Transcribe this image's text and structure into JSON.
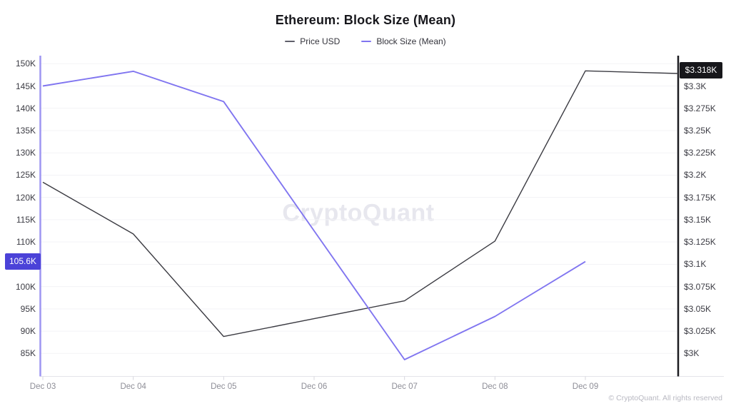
{
  "header": {
    "title": "Ethereum: Block Size (Mean)"
  },
  "legend": {
    "items": [
      {
        "label": "Price USD",
        "color": "#5f5f6a"
      },
      {
        "label": "Block Size (Mean)",
        "color": "#8075f0"
      }
    ]
  },
  "watermark": {
    "text": "CryptoQuant"
  },
  "footer": {
    "copyright": "© CryptoQuant. All rights reserved"
  },
  "axes": {
    "left": {
      "unit": "K",
      "ticks": [
        {
          "label": "150K",
          "v": 150
        },
        {
          "label": "145K",
          "v": 145
        },
        {
          "label": "140K",
          "v": 140
        },
        {
          "label": "135K",
          "v": 135
        },
        {
          "label": "130K",
          "v": 130
        },
        {
          "label": "125K",
          "v": 125
        },
        {
          "label": "120K",
          "v": 120
        },
        {
          "label": "115K",
          "v": 115
        },
        {
          "label": "110K",
          "v": 110
        },
        {
          "label": "100K",
          "v": 100
        },
        {
          "label": "95K",
          "v": 95
        },
        {
          "label": "90K",
          "v": 90
        },
        {
          "label": "85K",
          "v": 85
        }
      ],
      "current_badge": "105.6K",
      "badge_color": "#4b42d8",
      "axis_color": "#9e96f2"
    },
    "right": {
      "unit": "USD",
      "ticks": [
        {
          "label": "$3.3K",
          "v": 3300
        },
        {
          "label": "$3.275K",
          "v": 3275
        },
        {
          "label": "$3.25K",
          "v": 3250
        },
        {
          "label": "$3.225K",
          "v": 3225
        },
        {
          "label": "$3.2K",
          "v": 3200
        },
        {
          "label": "$3.175K",
          "v": 3175
        },
        {
          "label": "$3.15K",
          "v": 3150
        },
        {
          "label": "$3.125K",
          "v": 3125
        },
        {
          "label": "$3.1K",
          "v": 3100
        },
        {
          "label": "$3.075K",
          "v": 3075
        },
        {
          "label": "$3.05K",
          "v": 3050
        },
        {
          "label": "$3.025K",
          "v": 3025
        },
        {
          "label": "$3K",
          "v": 3000
        }
      ],
      "current_badge": "$3.318K",
      "badge_color": "#17171b",
      "axis_color": "#1b1b20"
    },
    "x": {
      "ticks": [
        "Dec 03",
        "Dec 04",
        "Dec 05",
        "Dec 06",
        "Dec 07",
        "Dec 08",
        "Dec 09"
      ]
    }
  },
  "chart_data": {
    "type": "line",
    "title": "Ethereum: Block Size (Mean)",
    "x": [
      "Dec 03",
      "Dec 04",
      "Dec 05",
      "Dec 06",
      "Dec 07",
      "Dec 08",
      "Dec 09"
    ],
    "series": [
      {
        "name": "Price USD",
        "axis": "right",
        "color": "#3b3b42",
        "values": [
          3192,
          3134,
          3019,
          3039,
          3059,
          3126,
          3317
        ],
        "edge_value": 3314,
        "current_label": "$3.318K"
      },
      {
        "name": "Block Size (Mean)",
        "axis": "left",
        "color": "#8075f0",
        "values": [
          145.0,
          148.3,
          141.5,
          112.5,
          83.6,
          93.3,
          105.6
        ],
        "current_label": "105.6K"
      }
    ],
    "left_axis": {
      "label": "Block Size (Mean)",
      "min": 85,
      "max": 150,
      "tick_step": 5,
      "unit": "K"
    },
    "right_axis": {
      "label": "Price USD",
      "min": 3000,
      "max": 3300,
      "tick_step": 25,
      "unit": "USD"
    },
    "grid": "horizontal",
    "legend_position": "top-center"
  }
}
